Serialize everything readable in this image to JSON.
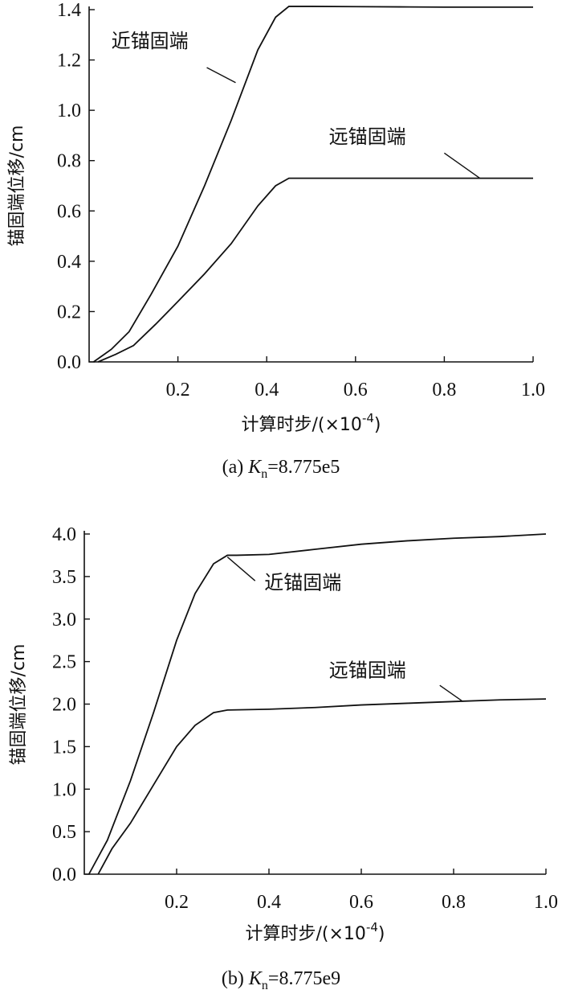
{
  "chart_data": [
    {
      "type": "line",
      "caption_prefix": "(a) ",
      "caption_var": "K",
      "caption_sub": "n",
      "caption_value": "=8.775e5",
      "xlabel_text": "计算时步/(×10",
      "xlabel_sup": "-4",
      "xlabel_close": ")",
      "ylabel": "锚固端位移/cm",
      "xlim": [
        0,
        1.0
      ],
      "ylim": [
        0,
        1.4
      ],
      "xticks": [
        "0.2",
        "0.4",
        "0.6",
        "0.8",
        "1.0"
      ],
      "yticks": [
        "0.0",
        "0.2",
        "0.4",
        "0.6",
        "0.8",
        "1.0",
        "1.2",
        "1.4"
      ],
      "series": [
        {
          "name": "近锚固端",
          "x": [
            0.01,
            0.05,
            0.09,
            0.14,
            0.2,
            0.26,
            0.32,
            0.38,
            0.42,
            0.45,
            0.5,
            0.6,
            0.7,
            0.8,
            0.9,
            1.0
          ],
          "y": [
            0.0,
            0.05,
            0.12,
            0.27,
            0.46,
            0.7,
            0.96,
            1.24,
            1.37,
            1.413,
            1.413,
            1.412,
            1.411,
            1.41,
            1.41,
            1.41
          ],
          "label_x": 0.05,
          "label_y": 1.25,
          "leader_from": [
            0.265,
            1.17
          ],
          "leader_to": [
            0.33,
            1.11
          ]
        },
        {
          "name": "远锚固端",
          "x": [
            0.02,
            0.06,
            0.1,
            0.15,
            0.2,
            0.26,
            0.32,
            0.38,
            0.42,
            0.45,
            0.5,
            0.6,
            0.7,
            0.8,
            0.9,
            1.0
          ],
          "y": [
            0.0,
            0.03,
            0.065,
            0.15,
            0.24,
            0.35,
            0.47,
            0.62,
            0.7,
            0.73,
            0.73,
            0.73,
            0.73,
            0.73,
            0.73,
            0.73
          ],
          "label_x": 0.54,
          "label_y": 0.87,
          "leader_from": [
            0.8,
            0.83
          ],
          "leader_to": [
            0.88,
            0.73
          ]
        }
      ]
    },
    {
      "type": "line",
      "caption_prefix": "(b) ",
      "caption_var": "K",
      "caption_sub": "n",
      "caption_value": "=8.775e9",
      "xlabel_text": "计算时步/(×10",
      "xlabel_sup": "-4",
      "xlabel_close": ")",
      "ylabel": "锚固端位移/cm",
      "xlim": [
        0,
        1.0
      ],
      "ylim": [
        0,
        4.0
      ],
      "xticks": [
        "0.2",
        "0.4",
        "0.6",
        "0.8",
        "1.0"
      ],
      "yticks": [
        "0.0",
        "0.5",
        "1.0",
        "1.5",
        "2.0",
        "2.5",
        "3.0",
        "3.5",
        "4.0"
      ],
      "series": [
        {
          "name": "近锚固端",
          "x": [
            0.01,
            0.05,
            0.1,
            0.15,
            0.2,
            0.24,
            0.28,
            0.31,
            0.33,
            0.4,
            0.5,
            0.6,
            0.7,
            0.8,
            0.9,
            1.0
          ],
          "y": [
            0.0,
            0.4,
            1.1,
            1.9,
            2.75,
            3.3,
            3.65,
            3.75,
            3.75,
            3.76,
            3.82,
            3.88,
            3.92,
            3.95,
            3.97,
            4.0
          ],
          "label_x": 0.39,
          "label_y": 3.35,
          "leader_from": [
            0.31,
            3.73
          ],
          "leader_to": [
            0.37,
            3.45
          ]
        },
        {
          "name": "远锚固端",
          "x": [
            0.03,
            0.06,
            0.1,
            0.15,
            0.2,
            0.24,
            0.28,
            0.31,
            0.4,
            0.5,
            0.6,
            0.7,
            0.8,
            0.9,
            1.0
          ],
          "y": [
            0.0,
            0.3,
            0.6,
            1.05,
            1.5,
            1.75,
            1.9,
            1.93,
            1.94,
            1.96,
            1.99,
            2.01,
            2.03,
            2.05,
            2.06
          ],
          "label_x": 0.53,
          "label_y": 2.32,
          "leader_from": [
            0.77,
            2.22
          ],
          "leader_to": [
            0.82,
            2.03
          ]
        }
      ]
    }
  ]
}
